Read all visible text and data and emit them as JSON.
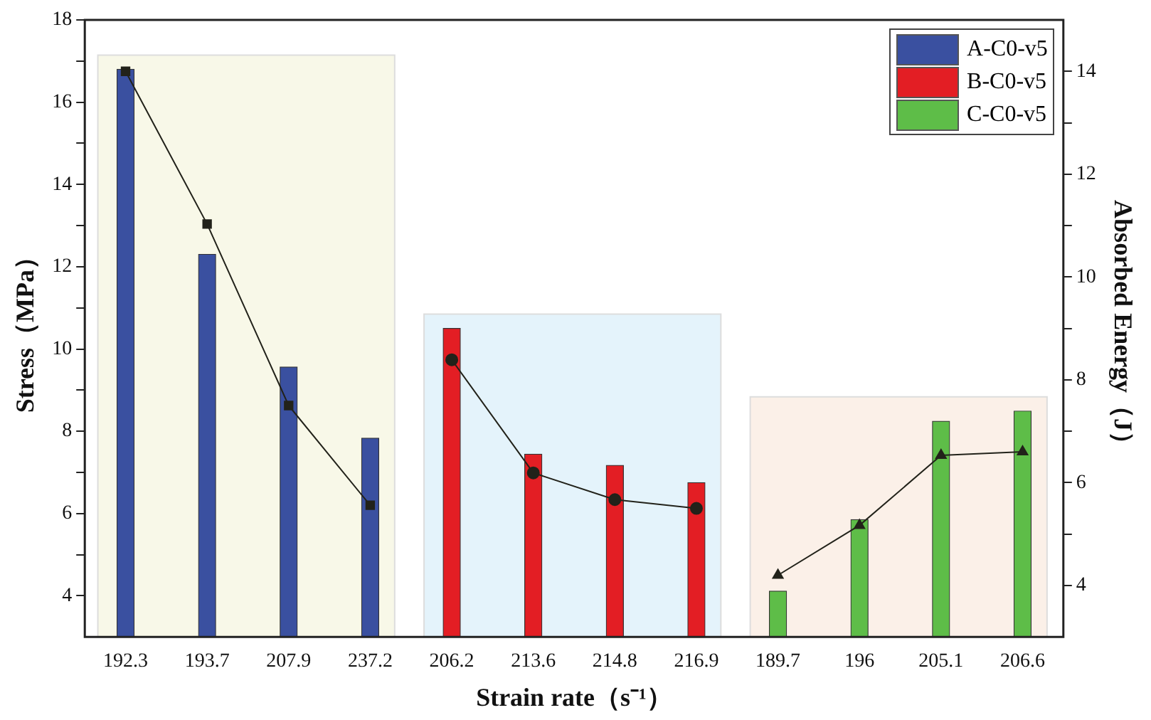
{
  "chart_data": {
    "type": "bar",
    "xlabel": "Strain rate（s⁻¹）",
    "ylabel": "Stress（MPa）",
    "y2label": "Absorbed Energy（J）",
    "categories": [
      "192.3",
      "193.7",
      "207.9",
      "237.2",
      "206.2",
      "213.6",
      "214.8",
      "216.9",
      "189.7",
      "196",
      "205.1",
      "206.6"
    ],
    "series": [
      {
        "name": "A-C0-v5",
        "color": "#3a50a0",
        "values": [
          16.8,
          12.3,
          9.56,
          7.83,
          null,
          null,
          null,
          null,
          null,
          null,
          null,
          null
        ]
      },
      {
        "name": "B-C0-v5",
        "color": "#e31e24",
        "values": [
          null,
          null,
          null,
          null,
          10.5,
          7.44,
          7.17,
          6.75,
          null,
          null,
          null,
          null
        ]
      },
      {
        "name": "C-C0-v5",
        "color": "#5ebd48",
        "values": [
          null,
          null,
          null,
          null,
          null,
          null,
          null,
          null,
          4.11,
          5.85,
          8.24,
          8.49
        ]
      },
      {
        "type": "line",
        "axis": "y2",
        "marker": "square",
        "color": "#22221a",
        "values": [
          14.0,
          11.03,
          7.5,
          5.56,
          null,
          null,
          null,
          null,
          null,
          null,
          null,
          null
        ]
      },
      {
        "type": "line",
        "axis": "y2",
        "marker": "circle",
        "color": "#22221a",
        "values": [
          null,
          null,
          null,
          null,
          8.39,
          6.19,
          5.67,
          5.5,
          null,
          null,
          null,
          null
        ]
      },
      {
        "type": "line",
        "axis": "y2",
        "marker": "triangle",
        "color": "#22221a",
        "values": [
          null,
          null,
          null,
          null,
          null,
          null,
          null,
          null,
          4.2,
          5.17,
          6.53,
          6.6
        ]
      }
    ],
    "ylim": [
      3,
      18
    ],
    "yticks": [
      4,
      {
        "value": 5,
        "label": null
      },
      6,
      {
        "value": 7,
        "label": null
      },
      8,
      {
        "value": 9,
        "label": null
      },
      10,
      {
        "value": 11,
        "label": null
      },
      12,
      {
        "value": 13,
        "label": null
      },
      14,
      {
        "value": 15,
        "label": null
      },
      16,
      {
        "value": 17,
        "label": null
      },
      18
    ],
    "y2lim": [
      3,
      15
    ],
    "y2ticks": [
      4,
      {
        "value": 5,
        "label": null
      },
      6,
      {
        "value": 7,
        "label": null
      },
      8,
      {
        "value": 9,
        "label": null
      },
      10,
      {
        "value": 11,
        "label": null
      },
      12,
      {
        "value": 13,
        "label": null
      },
      14
    ],
    "bands": [
      {
        "axis": "x",
        "from": "192.3",
        "to": "237.2",
        "color": "#f8f8e8"
      },
      {
        "axis": "x",
        "from": "206.2",
        "to": "216.9",
        "color": "#e4f3fb"
      },
      {
        "axis": "x",
        "from": "189.7",
        "to": "206.6",
        "color": "#fbf0e8"
      }
    ],
    "grid": false,
    "legend": "top right"
  }
}
